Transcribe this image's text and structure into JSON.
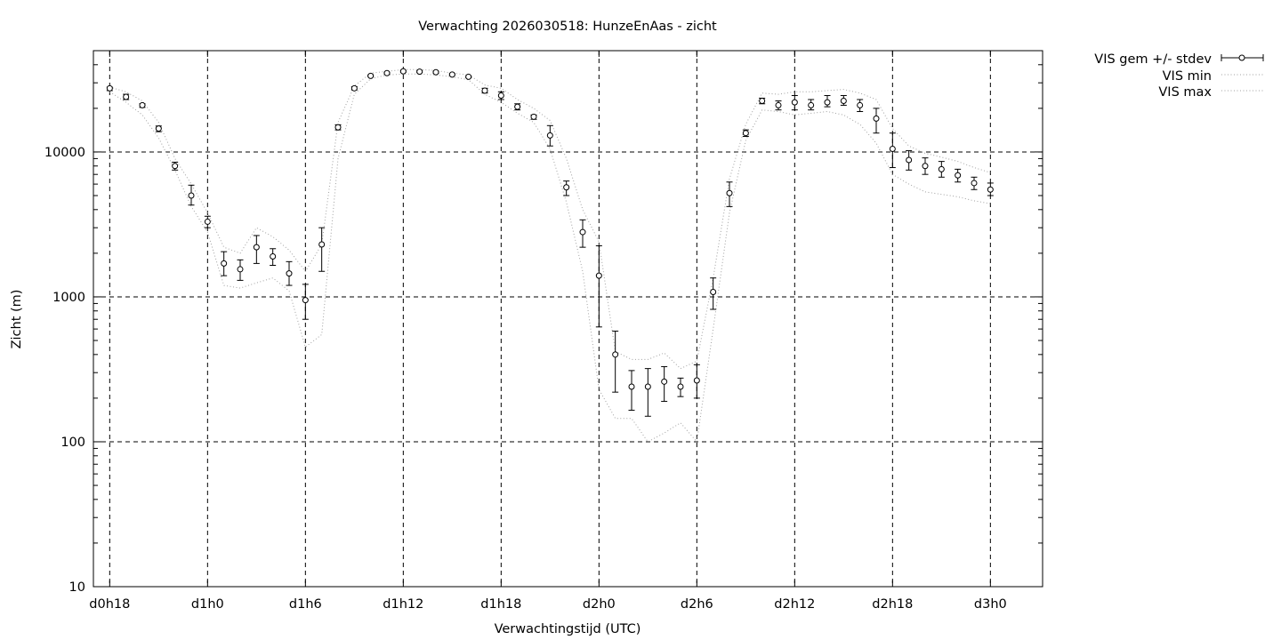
{
  "chart_data": {
    "type": "line",
    "title": "Verwachting 2026030518: HunzeEnAas - zicht",
    "xlabel": "Verwachtingstijd (UTC)",
    "ylabel": "Zicht (m)",
    "y_scale": "log",
    "ylim": [
      10,
      50000
    ],
    "xlim_hours": [
      -1,
      57.2
    ],
    "x_ticks": [
      {
        "label": "d0h18",
        "hour": 0
      },
      {
        "label": "d1h0",
        "hour": 6
      },
      {
        "label": "d1h6",
        "hour": 12
      },
      {
        "label": "d1h12",
        "hour": 18
      },
      {
        "label": "d1h18",
        "hour": 24
      },
      {
        "label": "d2h0",
        "hour": 30
      },
      {
        "label": "d2h6",
        "hour": 36
      },
      {
        "label": "d2h12",
        "hour": 42
      },
      {
        "label": "d2h18",
        "hour": 48
      },
      {
        "label": "d3h0",
        "hour": 54
      }
    ],
    "y_ticks": [
      10,
      100,
      1000,
      10000
    ],
    "grid": true,
    "legend_position": "outside-top-right",
    "legend": [
      "VIS gem +/- stdev",
      "VIS min",
      "VIS max"
    ],
    "x_hours": [
      0,
      1,
      2,
      3,
      4,
      5,
      6,
      7,
      8,
      9,
      10,
      11,
      12,
      13,
      14,
      15,
      16,
      17,
      18,
      19,
      20,
      21,
      22,
      23,
      24,
      25,
      26,
      27,
      28,
      29,
      30,
      31,
      32,
      33,
      34,
      35,
      36,
      37,
      38,
      39,
      40,
      41,
      42,
      43,
      44,
      45,
      46,
      47,
      48,
      49,
      50,
      51,
      52,
      53,
      54
    ],
    "series": [
      {
        "name": "VIS gem +/- stdev",
        "style": "points-errorbars",
        "values": [
          27500,
          24000,
          21000,
          14500,
          8000,
          5000,
          3300,
          1700,
          1550,
          2200,
          1900,
          1450,
          950,
          2300,
          14800,
          27500,
          33500,
          35000,
          36000,
          35800,
          35500,
          34200,
          33000,
          26500,
          24500,
          20500,
          17500,
          13000,
          5700,
          2800,
          1400,
          400,
          240,
          240,
          260,
          240,
          265,
          1080,
          5200,
          13500,
          22500,
          21000,
          22000,
          21000,
          22000,
          22500,
          21000,
          17000,
          10500,
          8800,
          8000,
          7600,
          6900,
          6100,
          5500
        ],
        "err_low": [
          26500,
          23000,
          20300,
          13800,
          7500,
          4300,
          3000,
          1400,
          1300,
          1700,
          1650,
          1200,
          700,
          1500,
          14200,
          26800,
          33000,
          34500,
          35500,
          35300,
          35000,
          33800,
          32500,
          25500,
          23000,
          19500,
          16800,
          11000,
          5000,
          2200,
          620,
          220,
          165,
          150,
          190,
          205,
          200,
          820,
          4200,
          12800,
          21500,
          19500,
          19500,
          19500,
          20500,
          21000,
          19000,
          13500,
          7800,
          7500,
          7000,
          6700,
          6200,
          5500,
          5000
        ],
        "err_high": [
          28000,
          25000,
          21500,
          15100,
          8500,
          5900,
          3600,
          2050,
          1800,
          2650,
          2150,
          1750,
          1220,
          3000,
          15400,
          28200,
          34000,
          35500,
          36500,
          36300,
          36000,
          34700,
          33500,
          27500,
          26000,
          21500,
          18000,
          15200,
          6300,
          3400,
          2250,
          580,
          310,
          320,
          330,
          275,
          340,
          1350,
          6200,
          14200,
          23500,
          22500,
          24500,
          23000,
          24500,
          24500,
          23000,
          20000,
          13500,
          10200,
          9100,
          8600,
          7600,
          6700,
          6100
        ]
      },
      {
        "name": "VIS min",
        "style": "dotted-line",
        "values": [
          26000,
          22000,
          18000,
          12500,
          7500,
          4200,
          2800,
          1200,
          1150,
          1250,
          1350,
          1100,
          450,
          550,
          9000,
          25000,
          32000,
          34000,
          34500,
          34500,
          34000,
          33000,
          31500,
          25000,
          22000,
          18500,
          16000,
          10500,
          4500,
          1500,
          230,
          145,
          145,
          100,
          115,
          135,
          100,
          600,
          3800,
          12000,
          19500,
          19000,
          18000,
          18500,
          19000,
          18000,
          15500,
          11500,
          7000,
          6000,
          5300,
          5100,
          4900,
          4600,
          4400
        ]
      },
      {
        "name": "VIS max",
        "style": "dotted-line",
        "values": [
          28000,
          26000,
          22500,
          16000,
          9000,
          6000,
          3800,
          2200,
          2000,
          3000,
          2600,
          2100,
          1500,
          2300,
          16000,
          28500,
          35000,
          36000,
          37000,
          37000,
          36500,
          35000,
          34000,
          29000,
          27500,
          23000,
          20000,
          16500,
          9000,
          4000,
          2400,
          420,
          370,
          370,
          410,
          320,
          360,
          1350,
          6500,
          15500,
          25500,
          25000,
          26000,
          26000,
          26500,
          27000,
          25500,
          23000,
          14500,
          11000,
          9800,
          9200,
          8600,
          7800,
          7200
        ]
      }
    ],
    "colors": {
      "axis": "#000000",
      "grid": "#000000",
      "min_max_line": "#a0a0a0"
    }
  }
}
